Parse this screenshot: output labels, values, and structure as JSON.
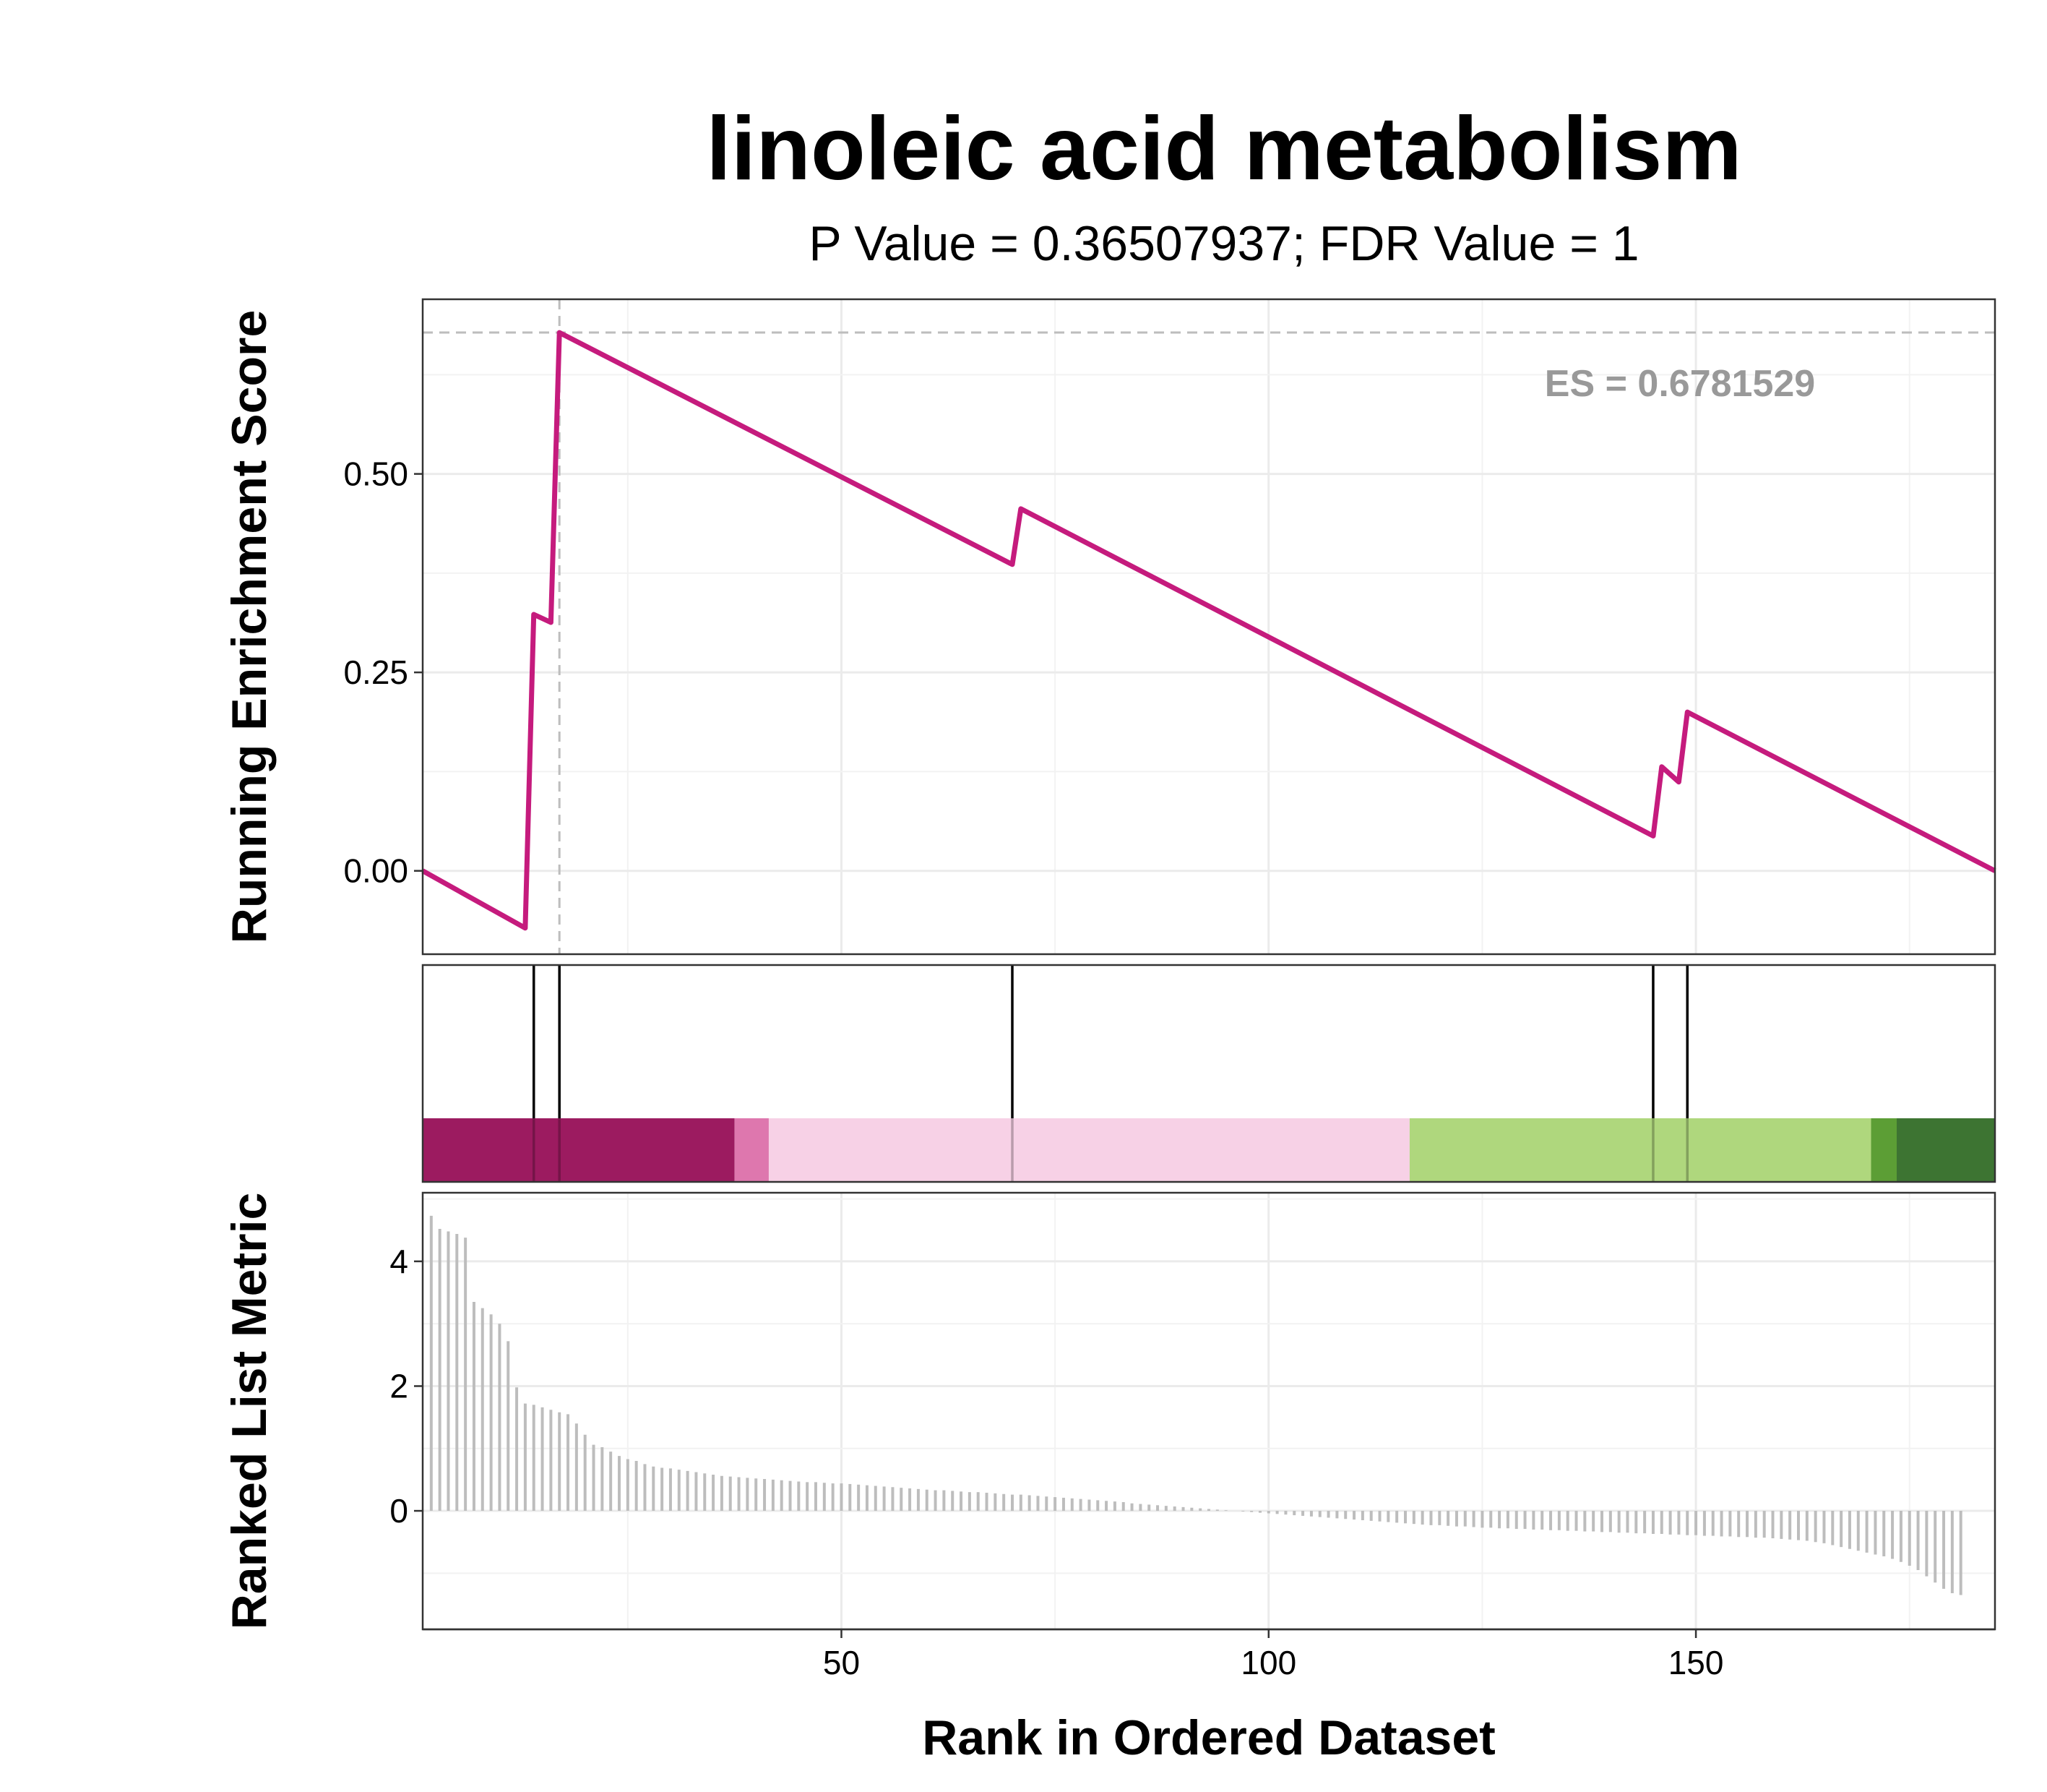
{
  "chart_data": {
    "type": "line",
    "title": "linoleic acid metabolism",
    "subtitle": "P Value = 0.36507937; FDR Value = 1",
    "annotation": "ES = 0.6781529",
    "xlabel": "Rank in Ordered Dataset",
    "xlim": [
      1,
      185
    ],
    "x_ticks": [
      "50",
      "100",
      "150"
    ],
    "x_tick_values": [
      50,
      100,
      150
    ],
    "grid": true,
    "colors": {
      "es_line": "#C51B7D",
      "ref_line": "#bdbdbd",
      "hit_line": "#000000",
      "metric_bars": "#bdbdbd",
      "annotation": "#999999"
    },
    "enrichment_panel": {
      "ylabel": "Running Enrichment Score",
      "ylim": [
        -0.105,
        0.72
      ],
      "y_ticks": [
        "0.00",
        "0.25",
        "0.50"
      ],
      "y_tick_values": [
        0,
        0.25,
        0.5
      ],
      "es_value": 0.6781529,
      "es_rank": 17,
      "series": [
        {
          "x": [
            1,
            13,
            14,
            16,
            17,
            70,
            71,
            145,
            146,
            148,
            149,
            185
          ],
          "y": [
            0.0,
            -0.072,
            0.323,
            0.313,
            0.678,
            0.386,
            0.456,
            0.044,
            0.131,
            0.112,
            0.2,
            0.0
          ]
        }
      ]
    },
    "hits_panel": {
      "hit_ranks": [
        14,
        17,
        70,
        145,
        149
      ],
      "color_bands": [
        {
          "from": 1,
          "to": 37.5,
          "color": "#9C1B60"
        },
        {
          "from": 37.5,
          "to": 41.5,
          "color": "#DE77AE"
        },
        {
          "from": 41.5,
          "to": 116.5,
          "color": "#F7D1E6"
        },
        {
          "from": 116.5,
          "to": 170.5,
          "color": "#AFD77D"
        },
        {
          "from": 170.5,
          "to": 173.5,
          "color": "#5C9E35"
        },
        {
          "from": 173.5,
          "to": 185,
          "color": "#3D7432"
        }
      ]
    },
    "metric_panel": {
      "ylabel": "Ranked List Metric",
      "ylim": [
        -1.9,
        5.1
      ],
      "y_ticks": [
        "0",
        "2",
        "4"
      ],
      "y_tick_values": [
        0,
        2,
        4
      ],
      "values": [
        4.73,
        4.52,
        4.48,
        4.44,
        4.38,
        3.35,
        3.25,
        3.15,
        3.0,
        2.72,
        1.98,
        1.72,
        1.7,
        1.66,
        1.62,
        1.58,
        1.55,
        1.4,
        1.22,
        1.06,
        1.02,
        0.95,
        0.88,
        0.83,
        0.8,
        0.75,
        0.71,
        0.69,
        0.68,
        0.66,
        0.64,
        0.62,
        0.6,
        0.58,
        0.56,
        0.55,
        0.54,
        0.53,
        0.52,
        0.51,
        0.5,
        0.49,
        0.48,
        0.47,
        0.46,
        0.46,
        0.45,
        0.44,
        0.44,
        0.43,
        0.42,
        0.41,
        0.4,
        0.39,
        0.38,
        0.37,
        0.36,
        0.35,
        0.34,
        0.33,
        0.33,
        0.32,
        0.31,
        0.3,
        0.3,
        0.29,
        0.28,
        0.27,
        0.26,
        0.26,
        0.25,
        0.24,
        0.23,
        0.22,
        0.21,
        0.2,
        0.19,
        0.18,
        0.17,
        0.16,
        0.15,
        0.14,
        0.12,
        0.11,
        0.1,
        0.09,
        0.08,
        0.07,
        0.06,
        0.05,
        0.04,
        0.03,
        0.02,
        0.01,
        0.0,
        -0.01,
        -0.02,
        -0.03,
        -0.04,
        -0.05,
        -0.06,
        -0.07,
        -0.08,
        -0.09,
        -0.1,
        -0.11,
        -0.12,
        -0.13,
        -0.14,
        -0.15,
        -0.16,
        -0.17,
        -0.18,
        -0.19,
        -0.2,
        -0.21,
        -0.22,
        -0.23,
        -0.23,
        -0.24,
        -0.25,
        -0.25,
        -0.26,
        -0.27,
        -0.27,
        -0.28,
        -0.28,
        -0.29,
        -0.29,
        -0.3,
        -0.3,
        -0.31,
        -0.31,
        -0.32,
        -0.32,
        -0.33,
        -0.33,
        -0.34,
        -0.34,
        -0.35,
        -0.35,
        -0.36,
        -0.36,
        -0.37,
        -0.37,
        -0.38,
        -0.38,
        -0.39,
        -0.39,
        -0.4,
        -0.4,
        -0.41,
        -0.41,
        -0.42,
        -0.42,
        -0.43,
        -0.43,
        -0.44,
        -0.45,
        -0.46,
        -0.47,
        -0.48,
        -0.5,
        -0.52,
        -0.55,
        -0.58,
        -0.61,
        -0.64,
        -0.67,
        -0.7,
        -0.73,
        -0.77,
        -0.82,
        -0.88,
        -0.95,
        -1.05,
        -1.15,
        -1.25,
        -1.32,
        -1.35
      ]
    }
  }
}
